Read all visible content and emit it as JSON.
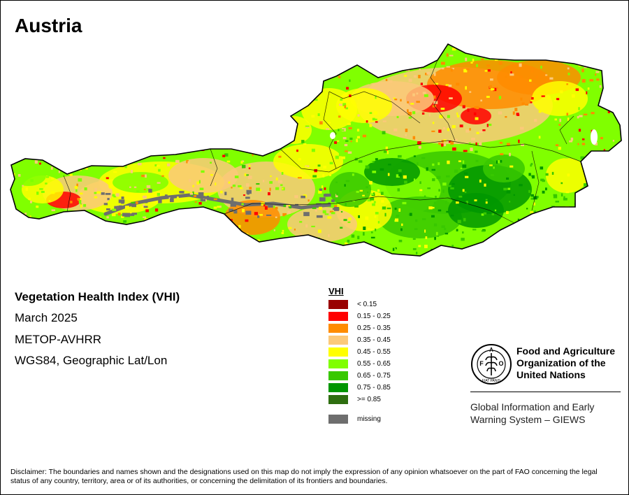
{
  "map": {
    "title": "Austria",
    "info": {
      "index_name": "Vegetation Health Index (VHI)",
      "period": "March 2025",
      "sensor": "METOP-AVHRR",
      "projection": "WGS84, Geographic Lat/Lon"
    },
    "legend": {
      "title": "VHI",
      "classes": [
        {
          "label": "< 0.15",
          "color": "#990000"
        },
        {
          "label": "0.15 - 0.25",
          "color": "#ff0000"
        },
        {
          "label": "0.25 - 0.35",
          "color": "#ff8c00"
        },
        {
          "label": "0.35 - 0.45",
          "color": "#fcc97a"
        },
        {
          "label": "0.45 - 0.55",
          "color": "#ffff00"
        },
        {
          "label": "0.55 - 0.65",
          "color": "#80ff00"
        },
        {
          "label": "0.65 - 0.75",
          "color": "#38c800"
        },
        {
          "label": "0.75 - 0.85",
          "color": "#009600"
        },
        {
          "label": ">= 0.85",
          "color": "#2e6e10"
        }
      ],
      "missing": {
        "label": "missing",
        "color": "#6e6e6e"
      }
    },
    "logo": {
      "org_lines": [
        "Food and Agriculture",
        "Organization of the",
        "United Nations"
      ],
      "emblem_text": "FAO",
      "emblem_motto": "FIAT PANIS",
      "system_lines": [
        "Global Information and Early",
        "Warning System – GIEWS"
      ]
    },
    "disclaimer": "Disclaimer: The boundaries and names shown and the designations used on this map do not imply the expression of any opinion whatsoever on the part of FAO concerning the legal status of any country, territory, area or of its authorities, or concerning the delimitation of its frontiers and boundaries.",
    "colors": {
      "border": "#000000",
      "lakes": "#ffffff"
    }
  }
}
